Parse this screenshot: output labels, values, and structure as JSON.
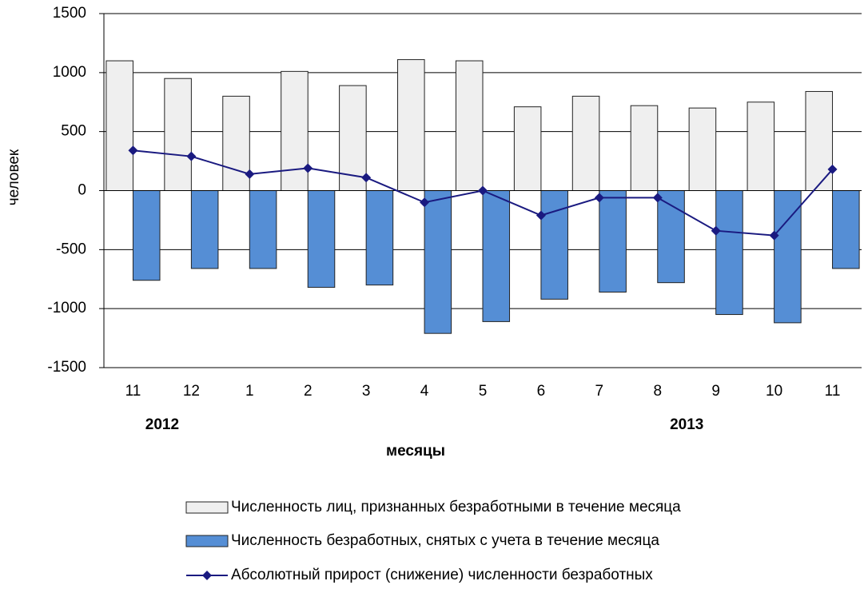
{
  "chart_data": {
    "type": "bar",
    "y_label": "человек",
    "x_label": "месяцы",
    "year_labels": [
      "2012",
      "2013"
    ],
    "categories": [
      "11",
      "12",
      "1",
      "2",
      "3",
      "4",
      "5",
      "6",
      "7",
      "8",
      "9",
      "10",
      "11"
    ],
    "series": [
      {
        "name": "Численность лиц, признанных безработными в течение месяца",
        "type": "bar",
        "color": "#efefef",
        "values": [
          1100,
          950,
          800,
          1010,
          890,
          1110,
          1100,
          710,
          800,
          720,
          700,
          750,
          840
        ]
      },
      {
        "name": "Численность безработных, снятых с учета в течение месяца",
        "type": "bar",
        "color": "#558ed5",
        "values": [
          -760,
          -660,
          -660,
          -820,
          -800,
          -1210,
          -1110,
          -920,
          -860,
          -780,
          -1050,
          -1120,
          -660
        ]
      },
      {
        "name": "Абсолютный прирост (снижение) численности безработных",
        "type": "line",
        "color": "#1a1a80",
        "values": [
          340,
          290,
          140,
          190,
          110,
          -100,
          0,
          -210,
          -60,
          -60,
          -340,
          -380,
          180
        ]
      }
    ],
    "ylim": [
      -1500,
      1500
    ],
    "yticks": [
      1500,
      1000,
      500,
      0,
      -500,
      -1000,
      -1500
    ],
    "grid": true
  }
}
